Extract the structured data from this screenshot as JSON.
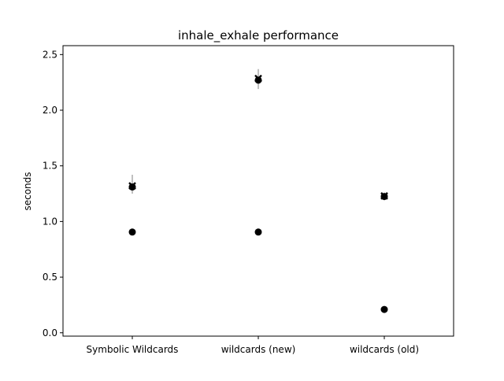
{
  "chart_data": {
    "type": "scatter",
    "title": "inhale_exhale performance",
    "xlabel": "",
    "ylabel": "seconds",
    "categories": [
      "Symbolic Wildcards",
      "wildcards (new)",
      "wildcards (old)"
    ],
    "ylim": [
      -0.03,
      2.58
    ],
    "yticks": [
      0.0,
      0.5,
      1.0,
      1.5,
      2.0,
      2.5
    ],
    "ytick_labels": [
      "0.0",
      "0.5",
      "1.0",
      "1.5",
      "2.0",
      "2.5"
    ],
    "grid": false,
    "marker_color": "#000000",
    "errorbar_color": "#808080",
    "series": [
      {
        "marker": "circle",
        "values": [
          0.905,
          0.905,
          0.21
        ],
        "errors": [
          [
            0.875,
            0.935
          ],
          [
            0.885,
            0.925
          ],
          [
            0.2,
            0.22
          ]
        ]
      },
      {
        "marker": "x",
        "values": [
          1.32,
          2.285,
          1.23
        ],
        "errors": [
          [
            1.25,
            1.42
          ],
          [
            2.19,
            2.37
          ],
          [
            1.19,
            1.26
          ]
        ]
      },
      {
        "marker": "circle",
        "values": [
          1.31,
          2.27,
          1.225
        ],
        "errors": [
          [
            1.27,
            1.36
          ],
          [
            2.24,
            2.31
          ],
          [
            1.21,
            1.24
          ]
        ]
      }
    ]
  }
}
